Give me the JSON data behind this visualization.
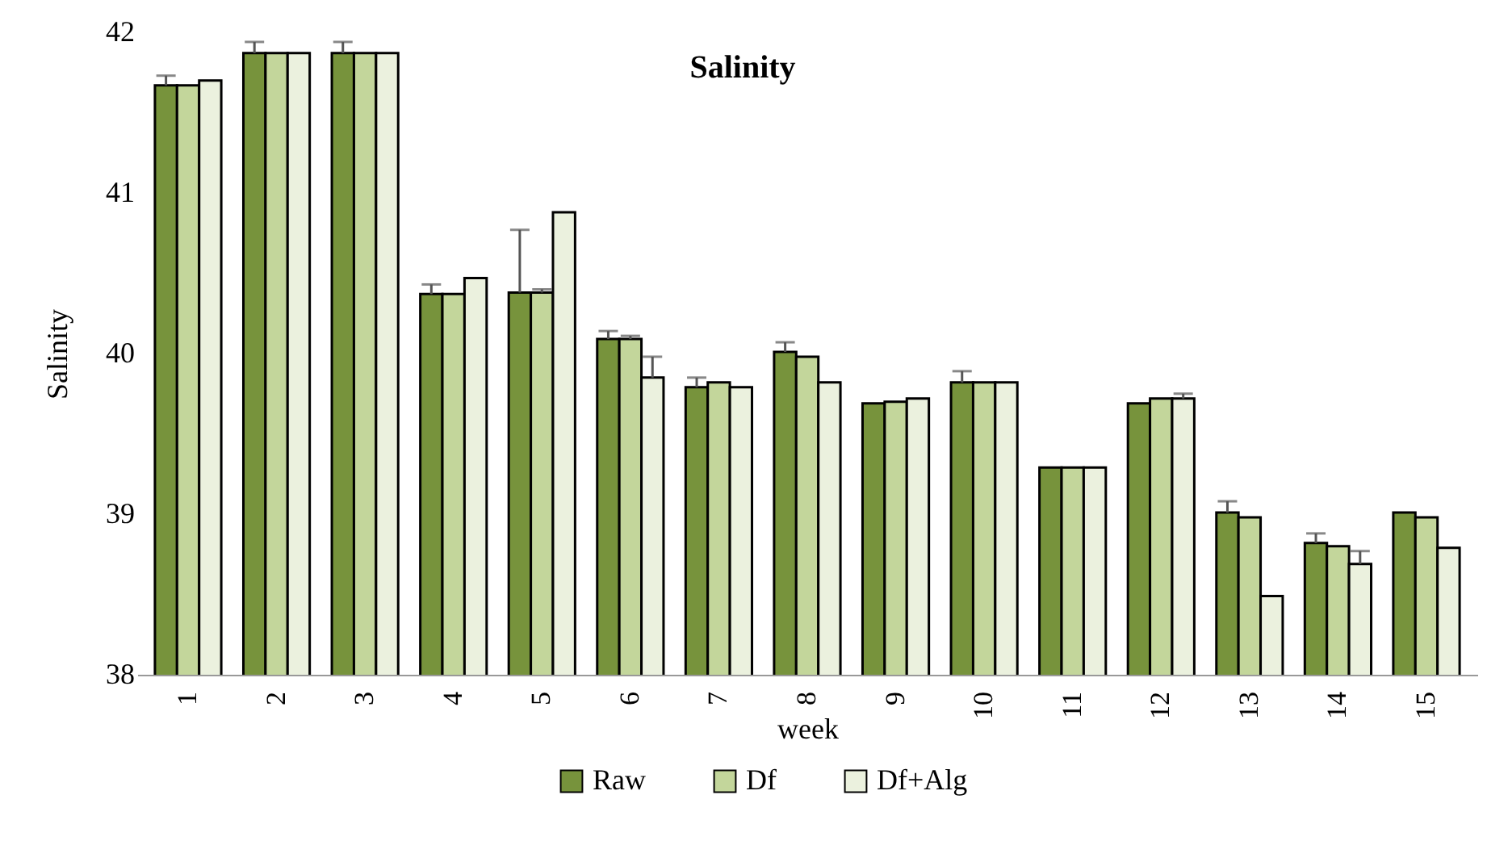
{
  "chart_data": {
    "type": "bar",
    "title": "Salinity",
    "xlabel": "week",
    "ylabel": "Salinity",
    "categories": [
      "1",
      "2",
      "3",
      "4",
      "5",
      "6",
      "7",
      "8",
      "9",
      "10",
      "11",
      "12",
      "13",
      "14",
      "15"
    ],
    "series": [
      {
        "name": "Raw",
        "color": "#77933c",
        "values": [
          41.67,
          41.87,
          41.87,
          40.37,
          40.38,
          40.09,
          39.79,
          40.01,
          39.69,
          39.82,
          39.29,
          39.69,
          39.01,
          38.82,
          39.01
        ],
        "errors": [
          [
            41.67,
            41.73
          ],
          [
            41.87,
            41.94
          ],
          [
            41.87,
            41.94
          ],
          [
            40.37,
            40.43
          ],
          [
            40.38,
            40.77
          ],
          [
            40.09,
            40.14
          ],
          [
            39.79,
            39.85
          ],
          [
            40.01,
            40.07
          ],
          null,
          [
            39.82,
            39.89
          ],
          null,
          null,
          [
            39.01,
            39.08
          ],
          [
            38.82,
            38.88
          ],
          null
        ]
      },
      {
        "name": "Df",
        "color": "#c3d69b",
        "values": [
          41.67,
          41.87,
          41.87,
          40.37,
          40.38,
          40.09,
          39.82,
          39.98,
          39.7,
          39.82,
          39.29,
          39.72,
          38.98,
          38.8,
          38.98
        ],
        "errors": [
          null,
          null,
          null,
          null,
          [
            40.38,
            40.4
          ],
          [
            40.09,
            40.11
          ],
          null,
          null,
          null,
          null,
          null,
          null,
          null,
          null,
          null
        ]
      },
      {
        "name": "Df+Alg",
        "color": "#ebf1de",
        "values": [
          41.7,
          41.87,
          41.87,
          40.47,
          40.88,
          39.85,
          39.79,
          39.82,
          39.72,
          39.82,
          39.29,
          39.72,
          38.49,
          38.69,
          38.79
        ],
        "errors": [
          null,
          null,
          null,
          null,
          null,
          [
            39.85,
            39.98
          ],
          null,
          null,
          null,
          null,
          null,
          [
            39.72,
            39.75
          ],
          null,
          [
            38.69,
            38.77
          ],
          null
        ]
      }
    ],
    "ylim": [
      38,
      42
    ],
    "yticks": [
      38,
      39,
      40,
      41,
      42
    ],
    "grid": false,
    "legend": "bottom"
  }
}
